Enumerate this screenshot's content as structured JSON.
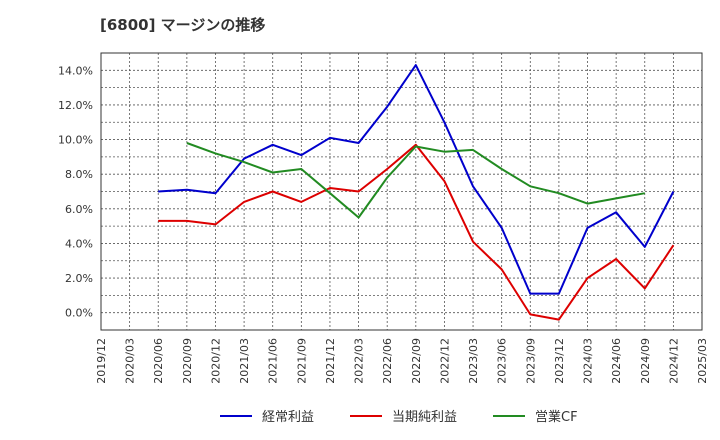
{
  "chart_data": {
    "type": "line",
    "title": "[6800]  マージンの推移",
    "xlabel": "",
    "ylabel": "",
    "ylim": [
      -1.0,
      15.0
    ],
    "yticks": [
      0,
      2,
      4,
      6,
      8,
      10,
      12,
      14
    ],
    "ytick_labels": [
      "0.0%",
      "2.0%",
      "4.0%",
      "6.0%",
      "8.0%",
      "10.0%",
      "12.0%",
      "14.0%"
    ],
    "x": [
      "2019/12",
      "2020/03",
      "2020/06",
      "2020/09",
      "2020/12",
      "2021/03",
      "2021/06",
      "2021/09",
      "2021/12",
      "2022/03",
      "2022/06",
      "2022/09",
      "2022/12",
      "2023/03",
      "2023/06",
      "2023/09",
      "2023/12",
      "2024/03",
      "2024/06",
      "2024/09",
      "2024/12",
      "2025/03"
    ],
    "grid": true,
    "legend_position": "bottom",
    "series": [
      {
        "name": "経常利益",
        "color": "#0000cc",
        "values": [
          null,
          null,
          7.0,
          7.1,
          6.9,
          8.9,
          9.7,
          9.1,
          10.1,
          9.8,
          11.9,
          14.3,
          11.0,
          7.3,
          4.9,
          1.1,
          1.1,
          4.9,
          5.8,
          3.8,
          7.0,
          null
        ]
      },
      {
        "name": "当期純利益",
        "color": "#dd0000",
        "values": [
          null,
          null,
          5.3,
          5.3,
          5.1,
          6.4,
          7.0,
          6.4,
          7.2,
          7.0,
          8.3,
          9.7,
          7.6,
          4.1,
          2.5,
          -0.1,
          -0.4,
          2.0,
          3.1,
          1.4,
          3.9,
          null
        ]
      },
      {
        "name": "営業CF",
        "color": "#228b22",
        "values": [
          null,
          null,
          null,
          9.8,
          9.2,
          8.7,
          8.1,
          8.3,
          6.9,
          5.5,
          7.8,
          9.6,
          9.3,
          9.4,
          8.3,
          7.3,
          6.9,
          6.3,
          6.6,
          6.9,
          null,
          null
        ]
      }
    ]
  }
}
